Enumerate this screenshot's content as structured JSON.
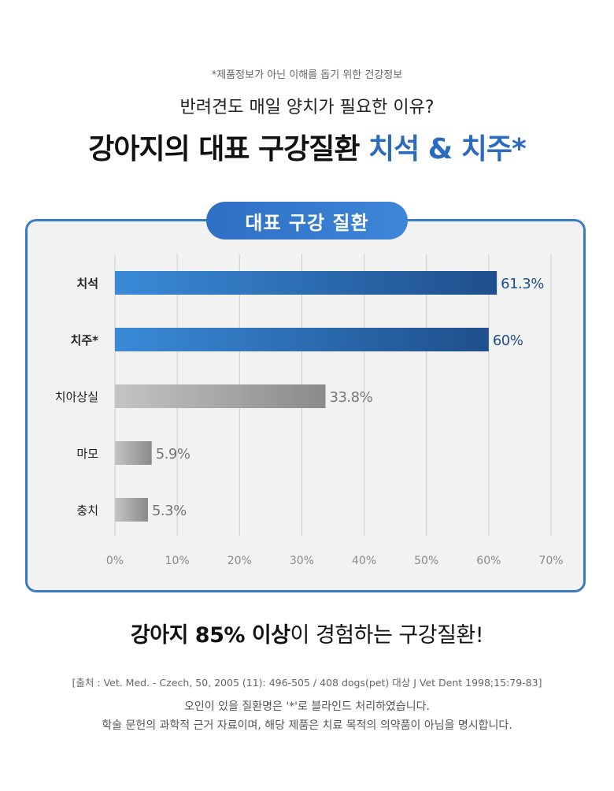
{
  "header": {
    "disclaimer": "*제품정보가 아닌 이해를 돕기 위한 건강정보",
    "subtitle": "반려견도 매일 양치가 필요한 이유?",
    "headline_main": "강아지의 대표 구강질환 ",
    "headline_accent": "치석 & 치주*"
  },
  "chart_data": {
    "type": "bar",
    "orientation": "horizontal",
    "title": "대표 구강 질환",
    "categories": [
      "치석",
      "치주*",
      "치아상실",
      "마모",
      "충치"
    ],
    "values": [
      61.3,
      60,
      33.8,
      5.9,
      5.3
    ],
    "value_labels": [
      "61.3%",
      "60%",
      "33.8%",
      "5.9%",
      "5.3%"
    ],
    "xlim": [
      0,
      70
    ],
    "x_ticks": [
      0,
      10,
      20,
      30,
      40,
      50,
      60,
      70
    ],
    "x_tick_labels": [
      "0%",
      "10%",
      "20%",
      "30%",
      "40%",
      "50%",
      "60%",
      "70%"
    ],
    "grid": true,
    "highlight_count": 2,
    "colors": {
      "highlight_start": "#3a8ad8",
      "highlight_end": "#1f4f8c",
      "normal_start": "#c4c4c4",
      "normal_end": "#8a8a8a",
      "highlight_label": "#1f4f8c",
      "normal_label": "#777777"
    }
  },
  "footer": {
    "claim_bold1": "강아지 85% 이상",
    "claim_rest": "이 경험하는 구강질환!",
    "source": "[출처 : Vet. Med. - Czech, 50, 2005 (11): 496-505 / 408 dogs(pet) 대상  J Vet Dent 1998;15:79-83]",
    "note1": "오인이 있을 질환명은 '*'로 블라인드 처리하였습니다.",
    "note2": "학술 문헌의 과학적 근거 자료이며, 해당 제품은 치료 목적의 의약품이 아님을 명시합니다."
  }
}
